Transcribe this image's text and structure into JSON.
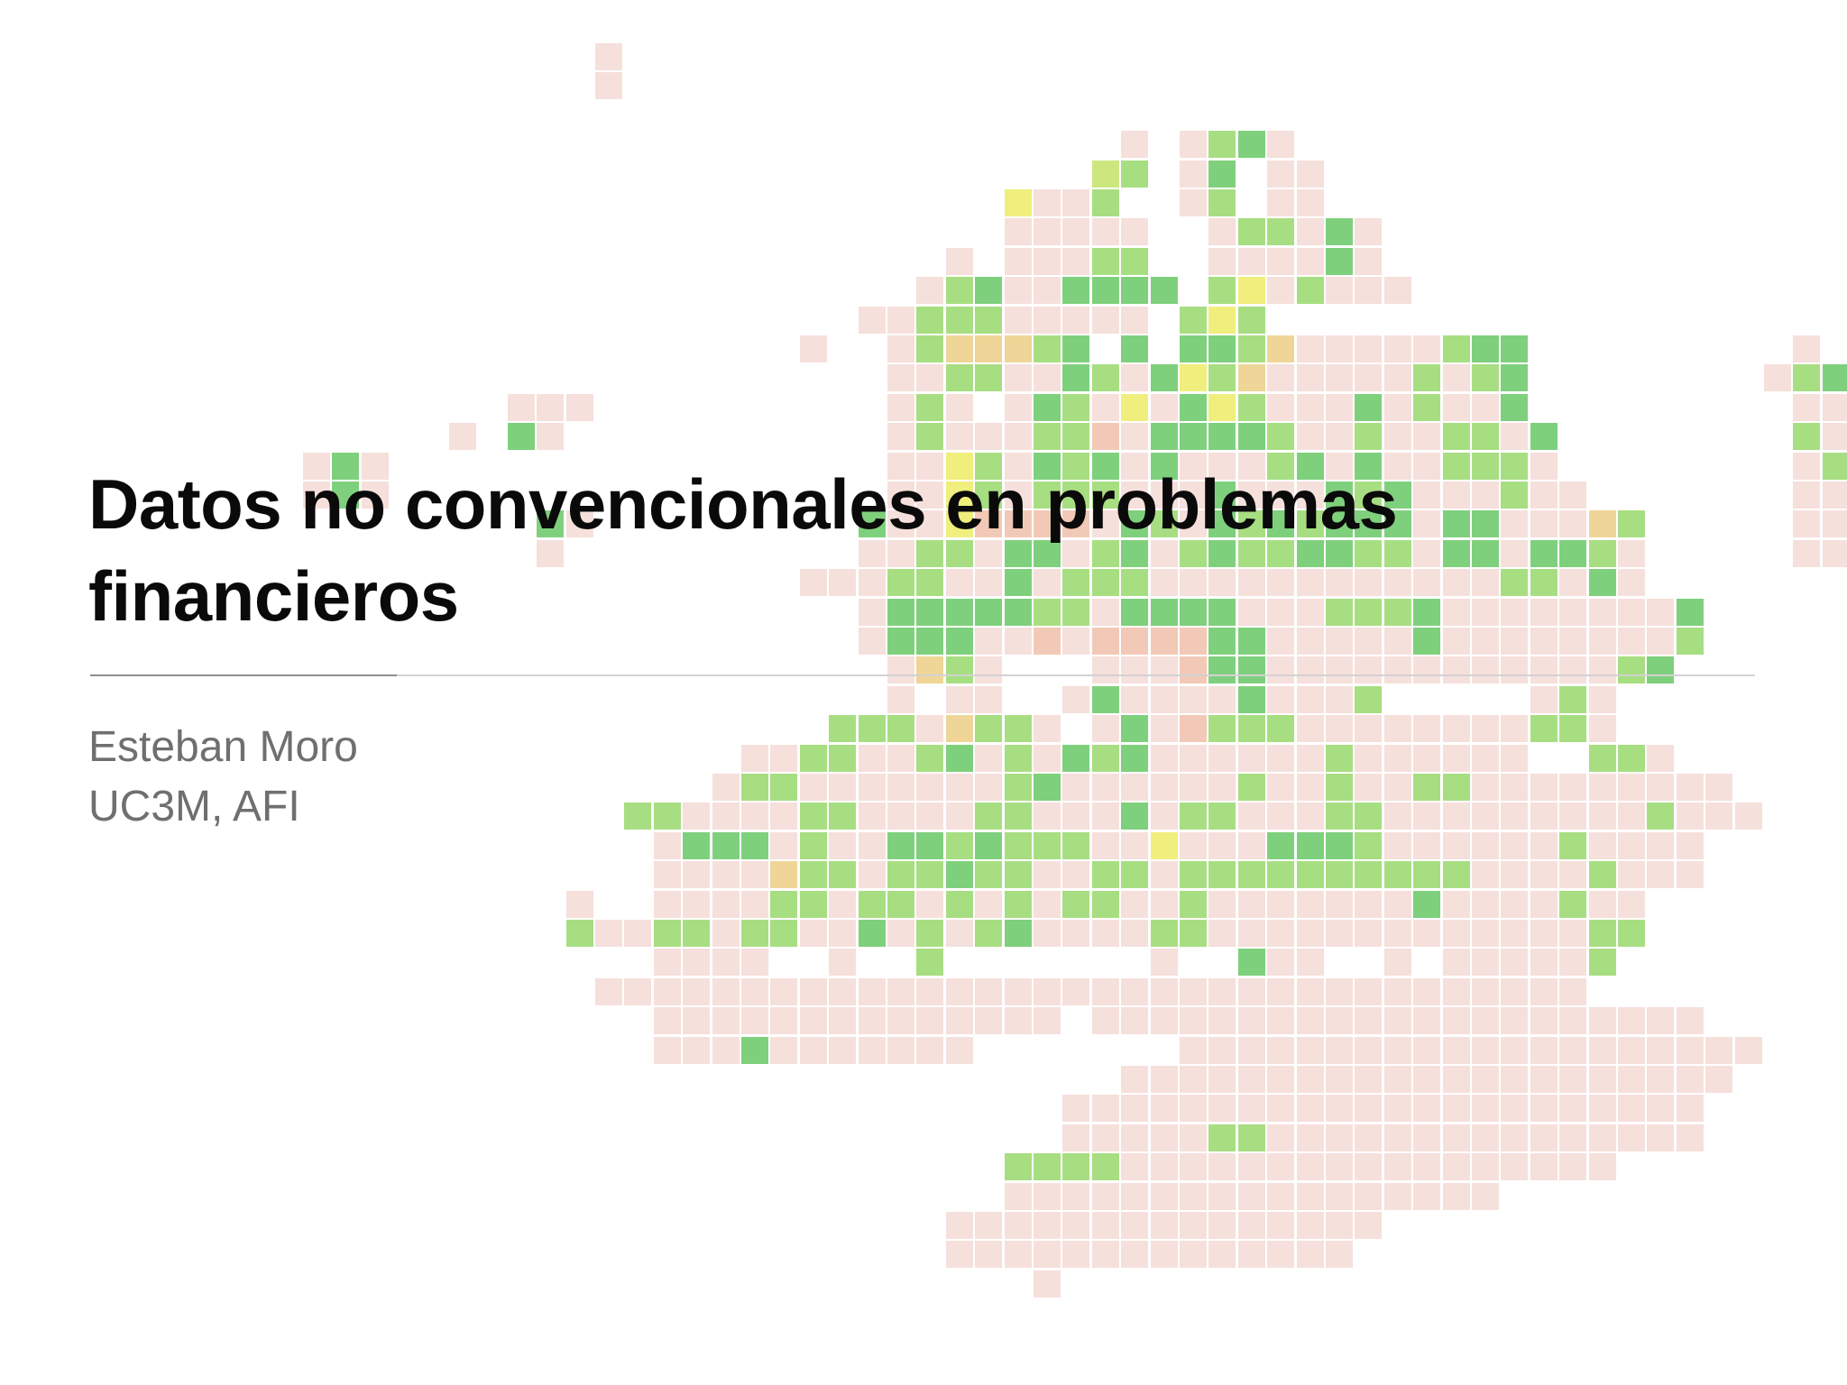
{
  "slide": {
    "title": "Datos no convencionales en problemas financieros",
    "author": "Esteban Moro",
    "affiliation": "UC3M, AFI"
  },
  "map": {
    "palette": {
      "0": "#f6e0dc",
      "1": "#f2c9b6",
      "2": "#efd597",
      "3": "#f0ee7d",
      "4": "#cde77f",
      "5": "#a8de82",
      "6": "#7fd07d"
    },
    "rows": [
      "....................K",
      "....................K",
      "",
      "......................................L.@AB@",
      ".....................................4A.@BC@@",
      "..................................3@@A..@A.@@",
      "..................................@@@@@..@AA@B@",
      "................................@.@@@AA..@@@@B@",
      "...............................@AB@@BBBB.A3@A@@@",
      ".............................@@AAA@@@@@.A3A",
      "...........................@..@A222AB.B.BBA2@@@@@ABB.........@",
      "..............................@@AA@@BA@B3A2@@@@@A@AB........@AB",
      ".................@@@..........@A@.@BA@3@B3A@@@B@A@@B.........@@@",
      "...............@.B@...........@A@@@AA1@BBBBA@@A@@AA@B........A@@",
      "..........@B@.................@@3A@BAB@B@@@AB@B@@AAA@........@A@",
      "..........@B@.................@@3A@AAA@@@B@@@BAB@@@A@@.......@@A@B@",
      "..................B@.........B@@31111@BA@BABABBB@BB@@@2A.....@@@@@BB@@",
      "..................@..........@@AA@BB@AB@ABAABBAA@BB@BBA@.....@@@@@@@",
      "...........................@@@AA@@B@AAA@@@@@@@@@@@@AA@B@",
      ".............................@BBBBBAA@BBBB@@@AAAB@@@@@@@@B",
      ".............................@BBB@@1@1111BB@@@@@B@@@@@@@@A",
      "..............................@2A@...@@@1BB@@@@@@@@@@@@AB",
      "..............................@.@@..@B@@@@B@@@A.....@A@",
      "............................AAA@2AA@.@B@1AAA@@@@@@@@AA@",
      ".........................@@AA@@AB@A@BAB@@@@@@A@@@@@@..AA@",
      "........................@AA@@@@@@@AB@@@@@@A@@A@@AA@@@@@@@@@",
      ".....................AA@@@@AA@@@@AA@@@B@AA@@@AA@@@@@@@@@A@@@",
      "......................@BBB@A@@BBABAAA@@3@@@BBBA@@@@@@A@@@@",
      "......................@@@@2AA@AABAA@@AA@AAAAAAAAAA@@@@A@@@",
      "...................@..@@@@AA@AA@A@A@AA@@A@@@@@@@B@@@@A@@",
      "...................A@@AA@AA@@B@A@AB@@@@AA@@@@@@@@@@@@@AA",
      "......................@@@@..@..A.......@..B@@..@.@@@@@A",
      "....................@@@@@@@@@@@@@@@@@@@@@@@@@@@@@@@@@@",
      "......................@@@@@@@@@@@@@@.@@@@@@@@@@@@@@@@@@@@@",
      "......................@@@B@@@@@@@.......@@@@@@@@@@@@@@@@@@@@",
      "......................................@@@@@@@@@@@@@@@@@@@@@",
      "....................................@@@@@@@@@@@@@@@@@@@@@@",
      "....................................@@@@@AA@@@@@@@@@@@@@@@",
      "..................................AAAA@@@@@@@@@@@@@@@@@",
      "..................................@@@@@@@@@@@@@@@@@",
      "................................@@@@@@@@@@@@@@@",
      "................................@@@@@@@@@@@@@@",
      "...................................@"
    ]
  }
}
